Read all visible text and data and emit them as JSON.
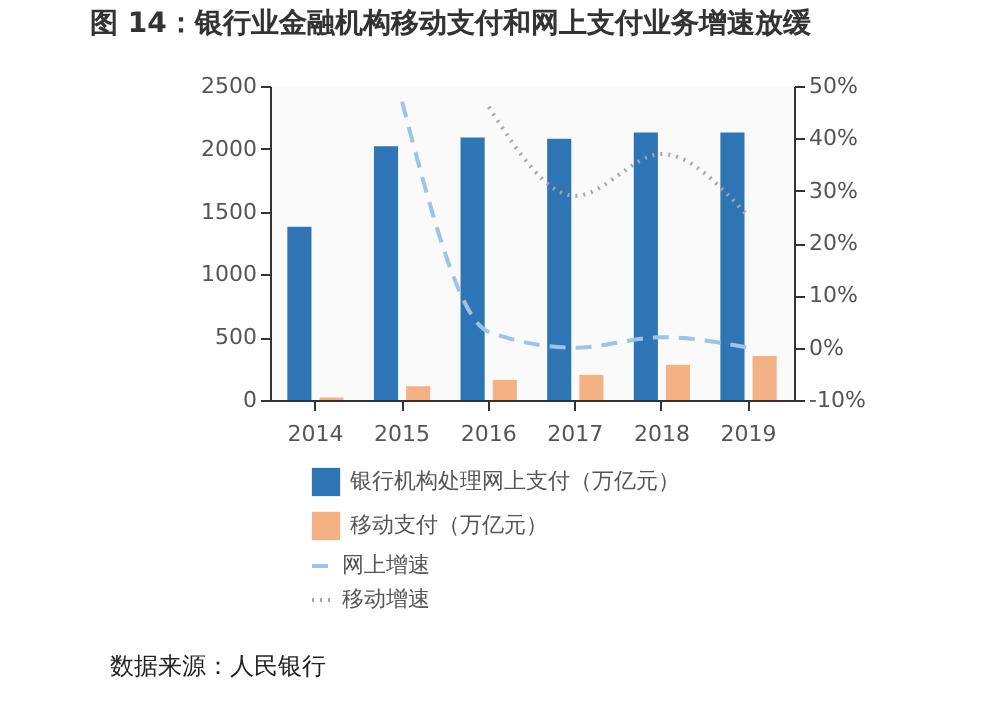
{
  "chart_data": {
    "type": "bar",
    "title": "图 14：银行业金融机构移动支付和网上支付业务增速放缓",
    "categories": [
      "2014",
      "2015",
      "2016",
      "2017",
      "2018",
      "2019"
    ],
    "series": [
      {
        "name": "银行机构处理网上支付（万亿元）",
        "color": "#2e75b6",
        "values": [
          1380,
          2020,
          2090,
          2080,
          2130,
          2130
        ]
      },
      {
        "name": "移动支付（万亿元）",
        "color": "#f4b183",
        "values": [
          20,
          110,
          160,
          200,
          280,
          350
        ]
      },
      {
        "name": "网上增速",
        "type": "line",
        "axis": "y2",
        "line_style": "dashed",
        "color": "#9dc3e6",
        "values": [
          null,
          47,
          3,
          0,
          2,
          0
        ]
      },
      {
        "name": "移动增速",
        "type": "line",
        "axis": "y2",
        "line_style": "dotted",
        "color": "#a6a6a6",
        "values": [
          null,
          null,
          46,
          29,
          37,
          25
        ]
      }
    ],
    "ylim": [
      0,
      2500
    ],
    "yticks": [
      0,
      500,
      1000,
      1500,
      2000,
      2500
    ],
    "y2lim": [
      -10,
      50
    ],
    "y2ticks": [
      {
        "value": -10,
        "label": "-10%"
      },
      {
        "value": 0,
        "label": "0%"
      },
      {
        "value": 10,
        "label": "10%"
      },
      {
        "value": 20,
        "label": "20%"
      },
      {
        "value": 30,
        "label": "30%"
      },
      {
        "value": 40,
        "label": "40%"
      },
      {
        "value": 50,
        "label": "50%"
      }
    ],
    "legend": "bottom",
    "annotations": [
      "数据来源：人民银行"
    ]
  }
}
